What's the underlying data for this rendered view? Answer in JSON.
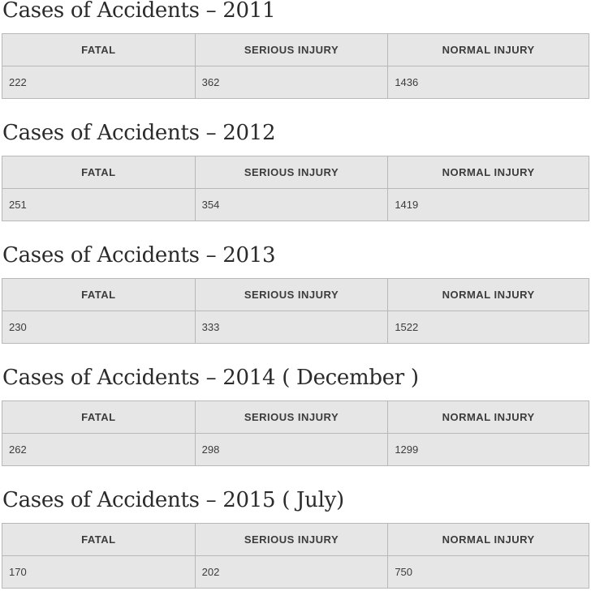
{
  "columns": [
    "FATAL",
    "SERIOUS INJURY",
    "NORMAL INJURY"
  ],
  "sections": [
    {
      "title": "Cases of Accidents – 2011",
      "values": [
        "222",
        "362",
        "1436"
      ]
    },
    {
      "title": "Cases of Accidents – 2012",
      "values": [
        "251",
        "354",
        "1419"
      ]
    },
    {
      "title": "Cases of Accidents – 2013",
      "values": [
        "230",
        "333",
        "1522"
      ]
    },
    {
      "title": "Cases of Accidents – 2014 ( December )",
      "values": [
        "262",
        "298",
        "1299"
      ]
    },
    {
      "title": "Cases of Accidents – 2015 ( July)",
      "values": [
        "170",
        "202",
        "750"
      ]
    }
  ]
}
